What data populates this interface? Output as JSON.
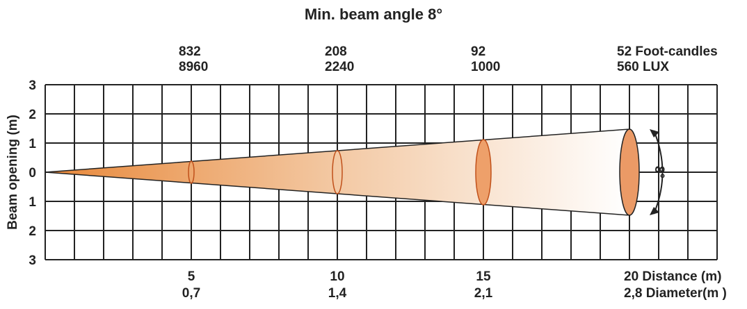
{
  "title": "Min. beam angle 8°",
  "y_axis_label": "Beam opening (m)",
  "y_tick_labels": [
    "3",
    "2",
    "1",
    "0",
    "1",
    "2",
    "3"
  ],
  "illuminance": [
    {
      "foot_candles": "832",
      "lux": "8960"
    },
    {
      "foot_candles": "208",
      "lux": "2240"
    },
    {
      "foot_candles": "92",
      "lux": "1000"
    },
    {
      "foot_candles": "52 Foot-candles",
      "lux": "560 LUX"
    }
  ],
  "distances": [
    {
      "distance": "5",
      "diameter": "0,7"
    },
    {
      "distance": "10",
      "diameter": "1,4"
    },
    {
      "distance": "15",
      "diameter": "2,1"
    },
    {
      "distance": "20 Distance (m)",
      "diameter": "2,8 Diameter(m )"
    }
  ],
  "angle_label": "8°"
}
